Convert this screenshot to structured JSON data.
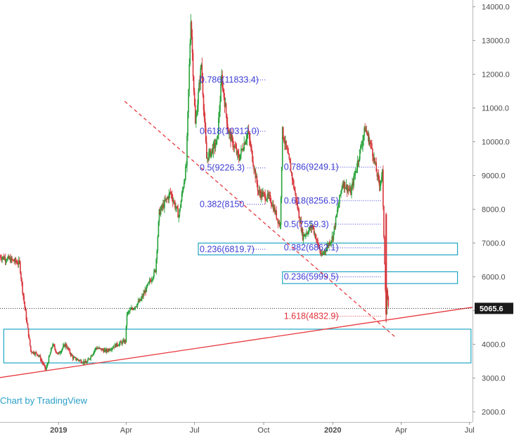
{
  "chart_data": {
    "type": "candlestick",
    "x_ticks": [
      "2019",
      "Apr",
      "Jul",
      "Oct",
      "2020",
      "Apr",
      "Jul"
    ],
    "y_ticks": [
      "14000.0",
      "13000.0",
      "12000.0",
      "11000.0",
      "10000.0",
      "9000.0",
      "8000.0",
      "7000.0",
      "6000.0",
      "5000.0",
      "4000.0",
      "3000.0",
      "2000.0"
    ],
    "ylim": [
      1700,
      14200
    ],
    "x_range": [
      "2018-10-15",
      "2020-07-05"
    ],
    "last_price": "5065.6",
    "watermark": "Chart by TradingView",
    "colors": {
      "up": "#26a33a",
      "down": "#d8353b",
      "fib_text": "#3d3dd6",
      "fib_red": "#e0313a",
      "box": "#22a6c4",
      "trend": "#e8383d",
      "price_label": "#1a1a1a"
    },
    "price_path": [
      [
        "2018-10-15",
        6600
      ],
      [
        "2018-10-30",
        6500
      ],
      [
        "2018-11-10",
        6400
      ],
      [
        "2018-11-14",
        5600
      ],
      [
        "2018-11-20",
        4600
      ],
      [
        "2018-11-25",
        3800
      ],
      [
        "2018-12-05",
        3700
      ],
      [
        "2018-12-15",
        3250
      ],
      [
        "2018-12-24",
        4000
      ],
      [
        "2018-12-31",
        3700
      ],
      [
        "2019-01-10",
        4000
      ],
      [
        "2019-01-20",
        3600
      ],
      [
        "2019-02-07",
        3450
      ],
      [
        "2019-02-20",
        3900
      ],
      [
        "2019-03-05",
        3800
      ],
      [
        "2019-03-20",
        4000
      ],
      [
        "2019-03-31",
        4100
      ],
      [
        "2019-04-02",
        4900
      ],
      [
        "2019-04-20",
        5300
      ],
      [
        "2019-05-10",
        6200
      ],
      [
        "2019-05-15",
        7900
      ],
      [
        "2019-05-30",
        8500
      ],
      [
        "2019-06-10",
        7800
      ],
      [
        "2019-06-20",
        9300
      ],
      [
        "2019-06-26",
        13700
      ],
      [
        "2019-07-02",
        10500
      ],
      [
        "2019-07-10",
        12300
      ],
      [
        "2019-07-17",
        9500
      ],
      [
        "2019-07-31",
        10000
      ],
      [
        "2019-08-06",
        11900
      ],
      [
        "2019-08-15",
        10300
      ],
      [
        "2019-08-29",
        9500
      ],
      [
        "2019-09-10",
        10300
      ],
      [
        "2019-09-24",
        8500
      ],
      [
        "2019-10-10",
        8300
      ],
      [
        "2019-10-23",
        7500
      ],
      [
        "2019-10-26",
        10300
      ],
      [
        "2019-11-05",
        9300
      ],
      [
        "2019-11-22",
        7200
      ],
      [
        "2019-12-05",
        7500
      ],
      [
        "2019-12-17",
        6600
      ],
      [
        "2020-01-01",
        7200
      ],
      [
        "2020-01-14",
        8800
      ],
      [
        "2020-01-25",
        8500
      ],
      [
        "2020-02-13",
        10400
      ],
      [
        "2020-02-22",
        9800
      ],
      [
        "2020-03-03",
        8700
      ],
      [
        "2020-03-07",
        9100
      ],
      [
        "2020-03-08",
        8000
      ],
      [
        "2020-03-12",
        4900
      ],
      [
        "2020-03-13",
        5600
      ],
      [
        "2020-03-15",
        5065.6
      ]
    ],
    "fib_labels": [
      {
        "text": "0.786(11833.4)",
        "value": 11833.4,
        "color": "blue",
        "from": "2019-07-06",
        "to": "2019-10-05"
      },
      {
        "text": "0.618(10312.0)",
        "value": 10312.0,
        "color": "blue",
        "from": "2019-07-06",
        "to": "2019-10-05"
      },
      {
        "text": "0.5(9226.3)",
        "value": 9226.3,
        "color": "blue",
        "from": "2019-07-06",
        "to": "2019-10-05"
      },
      {
        "text": "0.382(8150",
        "value": 8150,
        "color": "blue",
        "from": "2019-07-06",
        "to": "2019-10-05"
      },
      {
        "text": "0.236(6819.7)",
        "value": 6819.7,
        "color": "blue",
        "from": "2019-07-06",
        "to": "2019-10-05"
      },
      {
        "text": "0.786(9249.1)",
        "value": 9249.1,
        "color": "blue",
        "from": "2019-10-26",
        "to": "2020-03-05"
      },
      {
        "text": "0.618(8256.5)",
        "value": 8256.5,
        "color": "blue",
        "from": "2019-10-26",
        "to": "2020-03-05"
      },
      {
        "text": "0.5(7559.3)",
        "value": 7559.3,
        "color": "blue",
        "from": "2019-10-26",
        "to": "2020-03-05"
      },
      {
        "text": "0.382(6862.1)",
        "value": 6862.1,
        "color": "blue",
        "from": "2019-10-26",
        "to": "2020-03-05"
      },
      {
        "text": "0.236(5999.5)",
        "value": 5999.5,
        "color": "blue",
        "from": "2019-10-26",
        "to": "2020-03-05"
      },
      {
        "text": "1.618(4832.9)",
        "value": 4832.9,
        "color": "red",
        "from": "2019-10-26",
        "to": "2020-03-05"
      }
    ],
    "boxes": [
      {
        "from": "2019-07-06",
        "to": "2020-06-15",
        "y_top": 7000,
        "y_bottom": 6650
      },
      {
        "from": "2019-10-26",
        "to": "2020-06-15",
        "y_top": 6150,
        "y_bottom": 5800
      },
      {
        "from": "2018-10-20",
        "to": "2020-07-03",
        "y_top": 4450,
        "y_bottom": 3450
      }
    ],
    "trendlines": [
      {
        "from": [
          "2018-10-10",
          3000
        ],
        "to": [
          "2020-07-05",
          5100
        ],
        "style": "solid"
      },
      {
        "from": [
          "2019-03-30",
          11200
        ],
        "to": [
          "2020-03-25",
          4200
        ],
        "style": "dashed"
      }
    ],
    "hline_value": 5065.6
  }
}
